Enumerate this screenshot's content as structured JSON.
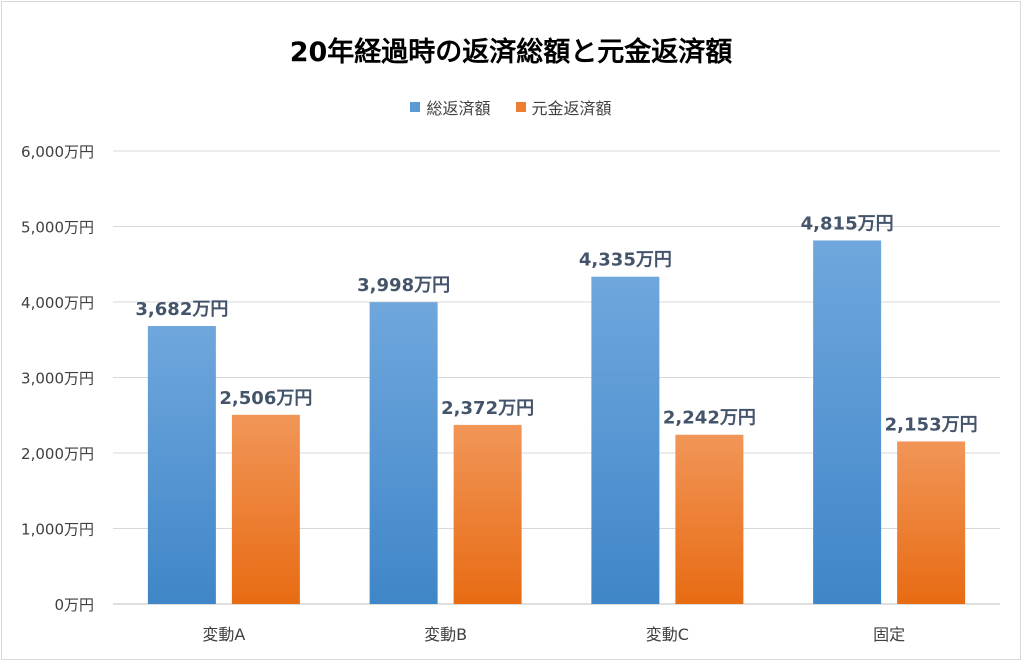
{
  "chart_data": {
    "type": "bar",
    "title": "20年経過時の返済総額と元金返済額",
    "categories": [
      "変動A",
      "変動B",
      "変動C",
      "固定"
    ],
    "series": [
      {
        "name": "総返済額",
        "values": [
          3682,
          3998,
          4335,
          4815
        ],
        "labels": [
          "3,682万円",
          "3,998万円",
          "4,335万円",
          "4,815万円"
        ],
        "color": "#5b9bd5"
      },
      {
        "name": "元金返済額",
        "values": [
          2506,
          2372,
          2242,
          2153
        ],
        "labels": [
          "2,506万円",
          "2,372万円",
          "2,242万円",
          "2,153万円"
        ],
        "color": "#ed7d31"
      }
    ],
    "yticks": [
      0,
      1000,
      2000,
      3000,
      4000,
      5000,
      6000
    ],
    "ytick_labels": [
      "0万円",
      "1,000万円",
      "2,000万円",
      "3,000万円",
      "4,000万円",
      "5,000万円",
      "6,000万円"
    ],
    "ylim": [
      0,
      6000
    ],
    "grid": true,
    "legend_position": "top",
    "data_label_color": "#44546a"
  }
}
